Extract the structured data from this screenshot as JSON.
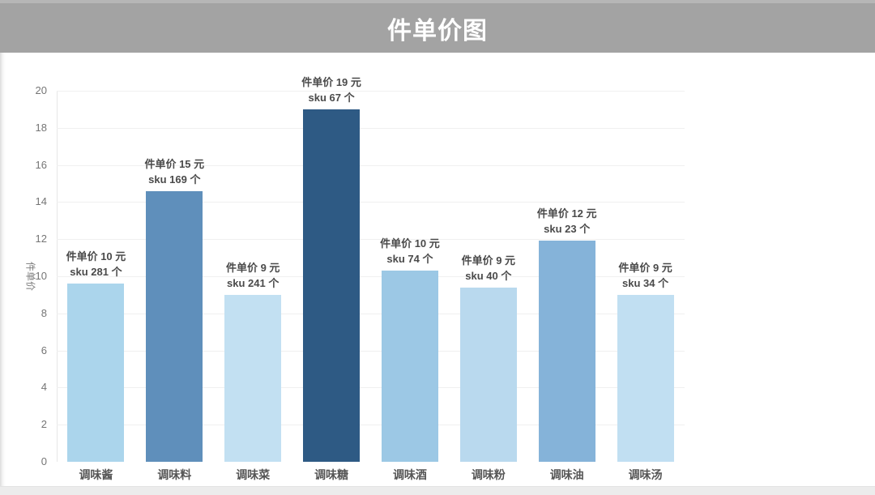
{
  "header": {
    "title": "件单价图"
  },
  "colors": {
    "header_bg": "#a3a3a3",
    "title_text": "#ffffff",
    "grid": "#f0f0f0",
    "annotation_text": "#4a4a4a",
    "bar_palette_darkest": "#2e5a84",
    "bar_palette_lightest": "#c1dff2"
  },
  "chart_data": {
    "type": "bar",
    "title": "件单价图",
    "xlabel": "",
    "ylabel": "件单价",
    "ylim": [
      0,
      20
    ],
    "ytick_step": 2,
    "yticks": [
      0,
      2,
      4,
      6,
      8,
      10,
      12,
      14,
      16,
      18,
      20
    ],
    "grid": true,
    "legend_position": "none",
    "categories": [
      "调味酱",
      "调味料",
      "调味菜",
      "调味糖",
      "调味酒",
      "调味粉",
      "调味油",
      "调味汤"
    ],
    "values": [
      9.6,
      14.6,
      9.0,
      19.0,
      10.3,
      9.4,
      11.9,
      9.0
    ],
    "unit_prices_yuan": [
      10,
      15,
      9,
      19,
      10,
      9,
      12,
      9
    ],
    "sku_counts": [
      281,
      169,
      241,
      67,
      74,
      40,
      23,
      34
    ],
    "bar_colors": [
      "#abd5ec",
      "#5f8fbb",
      "#c2e0f2",
      "#2e5a84",
      "#9cc8e5",
      "#b9d9ee",
      "#85b3d9",
      "#c1dff2"
    ],
    "annotations": [
      {
        "price_label": "件单价 10 元",
        "sku_label": "sku 281 个"
      },
      {
        "price_label": "件单价 15 元",
        "sku_label": "sku 169 个"
      },
      {
        "price_label": "件单价 9 元",
        "sku_label": "sku 241 个"
      },
      {
        "price_label": "件单价 19 元",
        "sku_label": "sku 67 个"
      },
      {
        "price_label": "件单价 10 元",
        "sku_label": "sku 74 个"
      },
      {
        "price_label": "件单价 9 元",
        "sku_label": "sku 40 个"
      },
      {
        "price_label": "件单价 12 元",
        "sku_label": "sku 23 个"
      },
      {
        "price_label": "件单价 9 元",
        "sku_label": "sku 34 个"
      }
    ]
  }
}
